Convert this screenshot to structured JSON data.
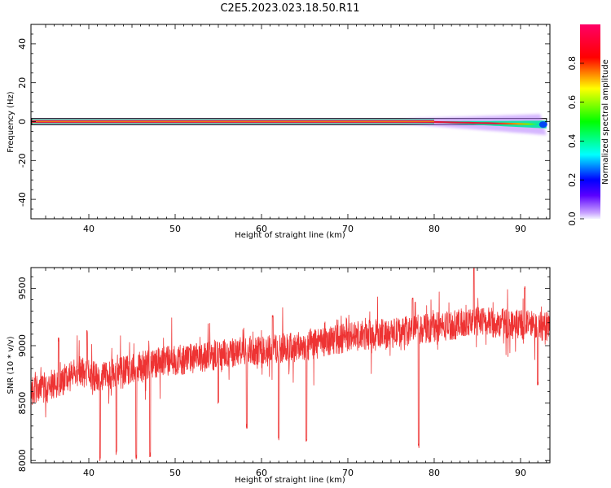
{
  "title": "C2E5.2023.023.18.50.R11",
  "chart_data": [
    {
      "type": "heatmap",
      "xlabel": "Height of straight line (km)",
      "ylabel": "Frequency (Hz)",
      "xlim": [
        33.3,
        93.4
      ],
      "ylim": [
        -50,
        50
      ],
      "xticks": [
        40,
        50,
        60,
        70,
        80,
        90
      ],
      "yticks": [
        40,
        20,
        0,
        -20,
        -40
      ],
      "colorbar": {
        "label": "Normalized spectral amplitude",
        "range": [
          0,
          1
        ],
        "ticks": [
          "0.0",
          "0.2",
          "0.4",
          "0.6",
          "0.8"
        ],
        "colormap": "hsv-reversed"
      },
      "band": {
        "x_start": 33.3,
        "x_end": 93.0,
        "center_frequency_start": 0,
        "center_frequency_end": -1.5,
        "peak_amplitude": 1.0
      }
    },
    {
      "type": "line",
      "xlabel": "Height of straight line (km)",
      "ylabel": "SNR (10 * v/v)",
      "xlim": [
        33.3,
        93.4
      ],
      "ylim": [
        7980,
        9680
      ],
      "xticks": [
        40,
        50,
        60,
        70,
        80,
        90
      ],
      "yticks": [
        8000,
        8500,
        9000,
        9500
      ],
      "series": [
        {
          "color": "#ee3333",
          "x": [
            33.3,
            35,
            37,
            39,
            41,
            43,
            45,
            47,
            49,
            51,
            53,
            55,
            57,
            59,
            61,
            63,
            65,
            67,
            69,
            71,
            73,
            75,
            77,
            79,
            81,
            83,
            85,
            87,
            89,
            91,
            93.4
          ],
          "values": [
            8600,
            8640,
            8700,
            8780,
            8720,
            8760,
            8800,
            8840,
            8870,
            8880,
            8900,
            8920,
            8940,
            8960,
            8970,
            8980,
            9000,
            9020,
            9060,
            9080,
            9100,
            9110,
            9130,
            9150,
            9170,
            9190,
            9210,
            9200,
            9190,
            9180,
            9170
          ],
          "dips": [
            {
              "x": 41.3,
              "value": 7990
            },
            {
              "x": 43.2,
              "value": 8050
            },
            {
              "x": 45.5,
              "value": 8010
            },
            {
              "x": 47.1,
              "value": 8030
            },
            {
              "x": 55.0,
              "value": 8490
            },
            {
              "x": 58.3,
              "value": 8280
            },
            {
              "x": 62.0,
              "value": 8170
            },
            {
              "x": 65.2,
              "value": 8150
            },
            {
              "x": 78.2,
              "value": 8110
            },
            {
              "x": 92.0,
              "value": 8650
            }
          ],
          "spikes": [
            {
              "x": 36.5,
              "value": 9070
            },
            {
              "x": 39.8,
              "value": 9140
            },
            {
              "x": 61.3,
              "value": 9270
            },
            {
              "x": 77.5,
              "value": 9420
            },
            {
              "x": 84.6,
              "value": 9680
            },
            {
              "x": 90.5,
              "value": 9520
            }
          ]
        }
      ]
    }
  ]
}
